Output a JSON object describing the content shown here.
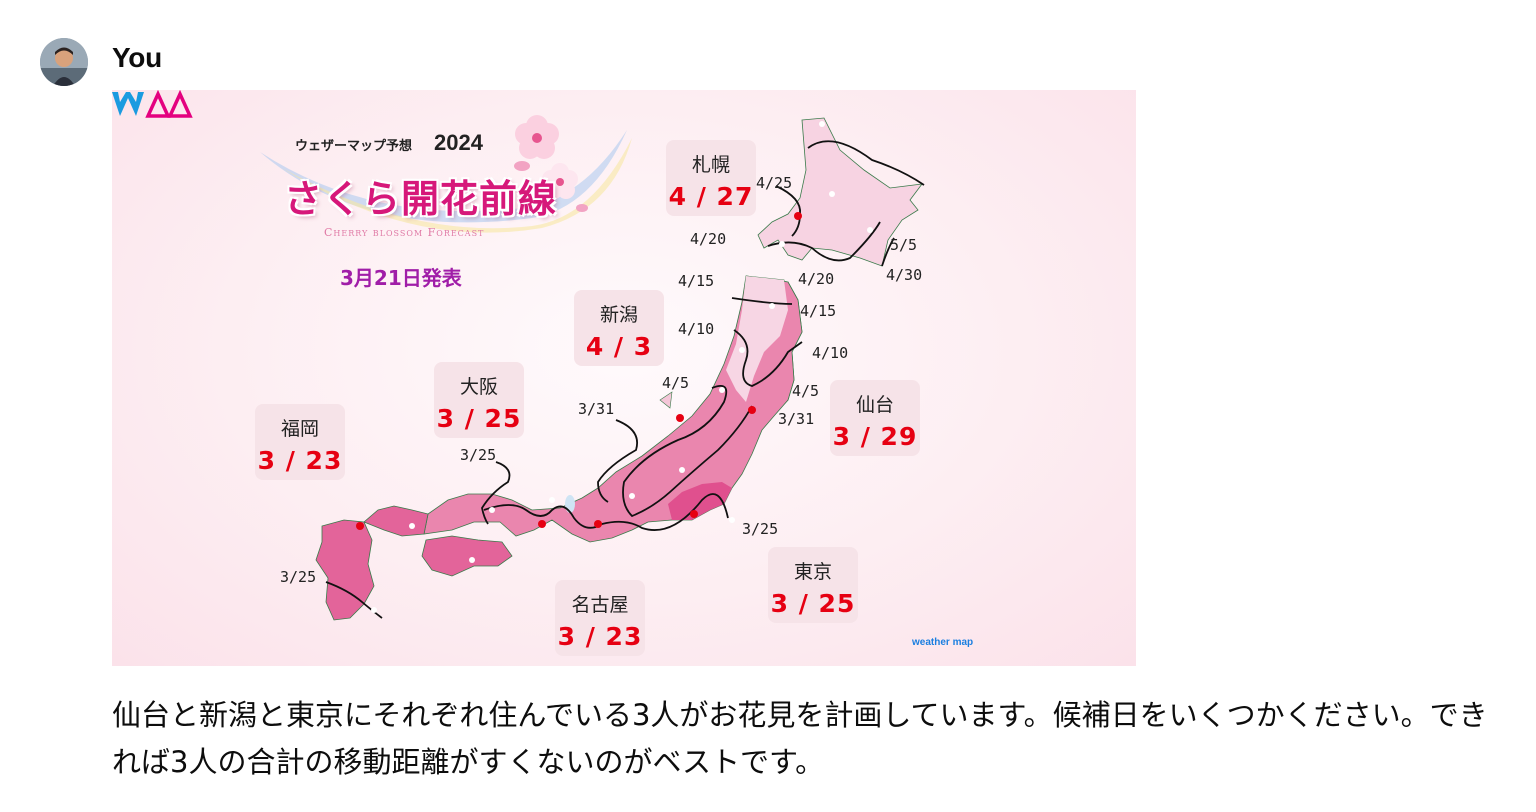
{
  "message": {
    "author": "You",
    "text": "仙台と新潟と東京にそれぞれ住んでいる3人がお花見を計画しています。候補日をいくつかください。できれば3人の合計の移動距離がすくないのがベストです。"
  },
  "map": {
    "subtitle_small": "ウェザーマップ予想",
    "year": "2024",
    "title": "さくら開花前線",
    "title_en": "Cherry blossom Forecast",
    "announcement": "3月21日発表",
    "brand": "weather map",
    "colors": {
      "accent": "#e60012",
      "title": "#d6187a",
      "announce": "#a01ea8",
      "land": "#e3649a",
      "land_light": "#f4c6d8"
    },
    "cities": [
      {
        "name": "札幌",
        "date": "4 / 27"
      },
      {
        "name": "新潟",
        "date": "4 / 3"
      },
      {
        "name": "大阪",
        "date": "3 / 25"
      },
      {
        "name": "福岡",
        "date": "3 / 23"
      },
      {
        "name": "仙台",
        "date": "3 / 29"
      },
      {
        "name": "東京",
        "date": "3 / 25"
      },
      {
        "name": "名古屋",
        "date": "3 / 23"
      }
    ],
    "front_labels": [
      "4/25",
      "4/20",
      "4/20",
      "5/5",
      "4/30",
      "4/15",
      "4/15",
      "4/10",
      "4/10",
      "4/5",
      "4/5",
      "3/31",
      "3/31",
      "3/25",
      "3/25",
      "3/25"
    ]
  }
}
